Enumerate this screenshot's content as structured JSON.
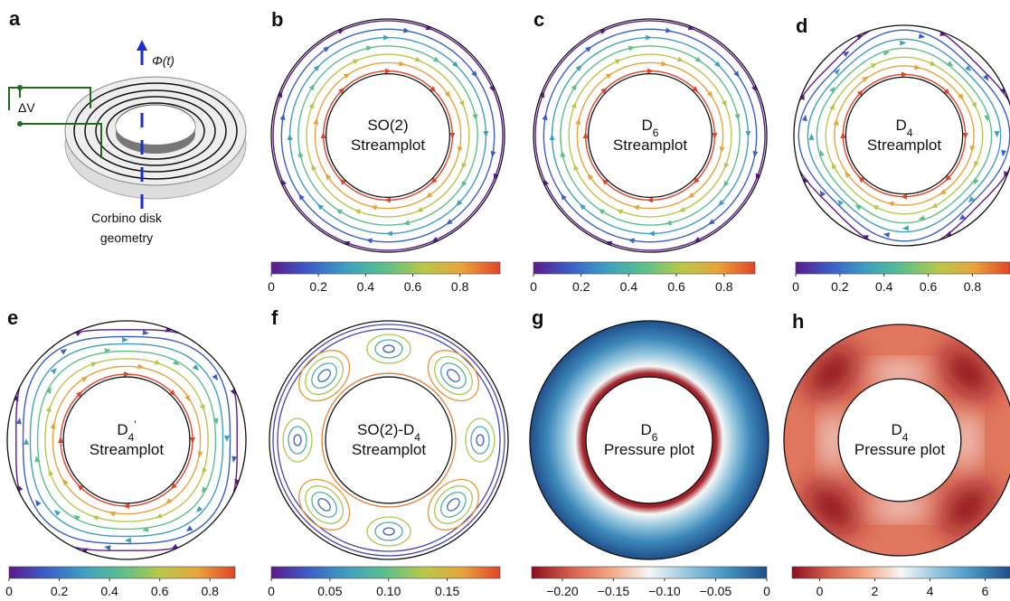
{
  "panel_a": {
    "letter": "a",
    "flux": "Φ(t)",
    "voltage": "ΔV",
    "caption": [
      "Corbino disk",
      "geometry"
    ]
  },
  "colormaps": {
    "rainbow": [
      "#5b1a8c",
      "#3b5fc8",
      "#3fa0c0",
      "#5cc08a",
      "#b8c84a",
      "#e8a43a",
      "#e0452b"
    ],
    "rdbu": [
      "#8e0d1f",
      "#d6604d",
      "#f4a582",
      "#f7f7f7",
      "#92c5de",
      "#4393c3",
      "#1f4f8a"
    ]
  },
  "panels": [
    {
      "letter": "b",
      "kind": "stream",
      "label": [
        [
          {
            "text": "SO(2)"
          }
        ],
        [
          {
            "text": "Streamplot"
          }
        ]
      ],
      "colorbar": {
        "cmap": "rainbow",
        "lim": [
          0,
          0.97
        ],
        "ticks": [
          0,
          0.2,
          0.4,
          0.6,
          0.8
        ]
      }
    },
    {
      "letter": "c",
      "kind": "stream",
      "label": [
        [
          {
            "text": "D"
          },
          {
            "sub": "6"
          }
        ],
        [
          {
            "text": "Streamplot"
          }
        ]
      ],
      "colorbar": {
        "cmap": "rainbow",
        "lim": [
          0,
          0.93
        ],
        "ticks": [
          0,
          0.2,
          0.4,
          0.6,
          0.8
        ]
      }
    },
    {
      "letter": "d",
      "kind": "stream",
      "label": [
        [
          {
            "text": "D"
          },
          {
            "sub": "4"
          }
        ],
        [
          {
            "text": "Streamplot"
          }
        ]
      ],
      "colorbar": {
        "cmap": "rainbow",
        "lim": [
          0,
          0.97
        ],
        "ticks": [
          0,
          0.2,
          0.4,
          0.6,
          0.8
        ]
      }
    },
    {
      "letter": "e",
      "kind": "stream",
      "label": [
        [
          {
            "text": "D"
          },
          {
            "sub": "4"
          },
          {
            "sup": "'"
          }
        ],
        [
          {
            "text": "Streamplot"
          }
        ]
      ],
      "colorbar": {
        "cmap": "rainbow",
        "lim": [
          0,
          0.9
        ],
        "ticks": [
          0,
          0.2,
          0.4,
          0.6,
          0.8
        ]
      }
    },
    {
      "letter": "f",
      "kind": "vortex",
      "label": [
        [
          {
            "text": "SO(2)-D"
          },
          {
            "sub": "4"
          }
        ],
        [
          {
            "text": "Streamplot"
          }
        ]
      ],
      "colorbar": {
        "cmap": "rainbow",
        "lim": [
          0,
          0.195
        ],
        "ticks": [
          0,
          {
            "value": 0.05,
            "label": "0.05"
          },
          {
            "value": 0.1,
            "label": "0.10"
          },
          {
            "value": 0.15,
            "label": "0.15"
          }
        ]
      }
    },
    {
      "letter": "g",
      "kind": "pressure-radial",
      "label": [
        [
          {
            "text": "D"
          },
          {
            "sub": "6"
          }
        ],
        [
          {
            "text": "Pressure plot"
          }
        ]
      ],
      "colorbar": {
        "cmap": "rdbu",
        "lim": [
          -0.23,
          0
        ],
        "ticks": [
          {
            "value": -0.2,
            "label": "−0.20"
          },
          {
            "value": -0.15,
            "label": "−0.15"
          },
          {
            "value": -0.1,
            "label": "−0.10"
          },
          {
            "value": -0.05,
            "label": "−0.05"
          },
          0
        ]
      }
    },
    {
      "letter": "h",
      "kind": "pressure-lobes",
      "label": [
        [
          {
            "text": "D"
          },
          {
            "sub": "4"
          }
        ],
        [
          {
            "text": "Pressure plot"
          }
        ]
      ],
      "colorbar": {
        "cmap": "rdbu",
        "lim": [
          -1,
          6.9
        ],
        "ticks": [
          0,
          2,
          4,
          6
        ]
      }
    }
  ]
}
